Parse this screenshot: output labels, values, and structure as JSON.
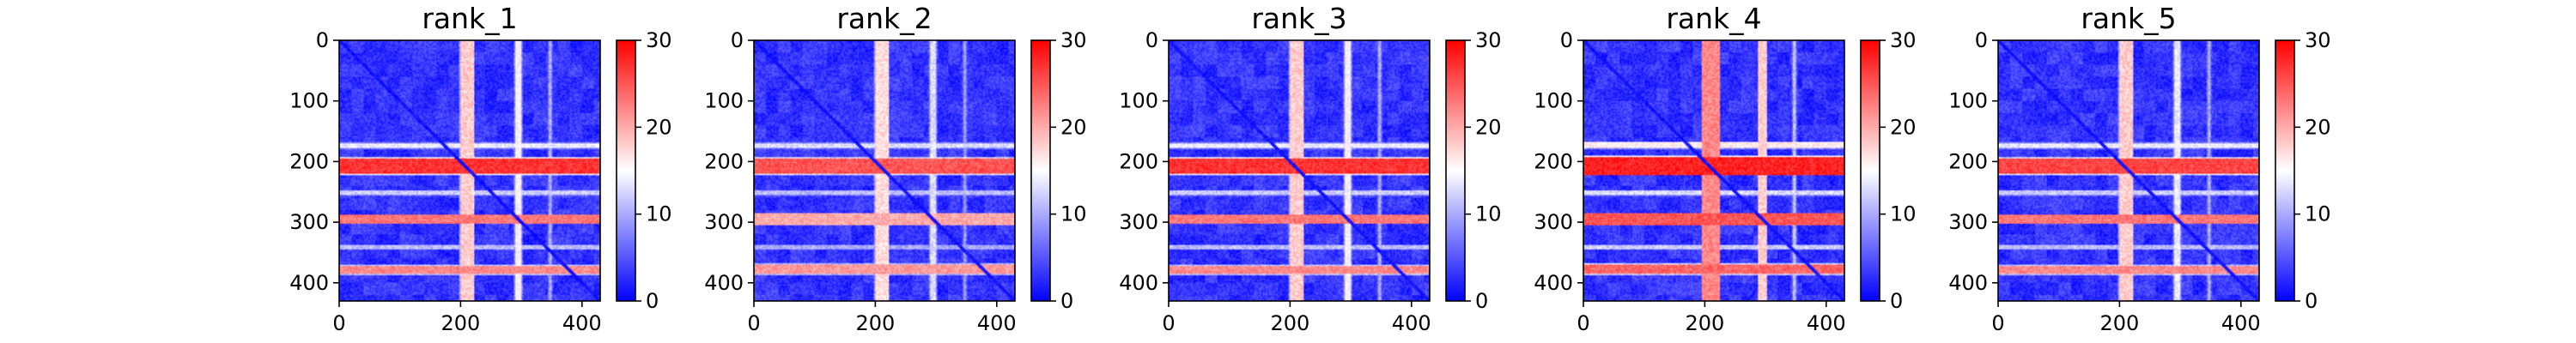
{
  "chart_data": [
    {
      "type": "heatmap",
      "title": "rank_1",
      "xlabel": "",
      "ylabel": "",
      "xlim": [
        0,
        430
      ],
      "ylim": [
        430,
        0
      ],
      "xticks": [
        0,
        200,
        400
      ],
      "yticks": [
        0,
        100,
        200,
        300,
        400
      ],
      "colorbar": {
        "range": [
          0,
          30
        ],
        "ticks": [
          0,
          10,
          20,
          30
        ],
        "colormap": "bwr"
      },
      "background_value": 3,
      "diagonal_value": 0,
      "row_bands": [
        {
          "start": 170,
          "end": 178,
          "value": 16
        },
        {
          "start": 195,
          "end": 220,
          "value": 29
        },
        {
          "start": 248,
          "end": 256,
          "value": 14
        },
        {
          "start": 288,
          "end": 302,
          "value": 25
        },
        {
          "start": 338,
          "end": 344,
          "value": 13
        },
        {
          "start": 372,
          "end": 386,
          "value": 24
        }
      ],
      "column_bands": [
        {
          "start": 200,
          "end": 222,
          "value": 20
        },
        {
          "start": 290,
          "end": 300,
          "value": 17
        },
        {
          "start": 345,
          "end": 350,
          "value": 12
        }
      ]
    },
    {
      "type": "heatmap",
      "title": "rank_2",
      "xlabel": "",
      "ylabel": "",
      "xlim": [
        0,
        430
      ],
      "ylim": [
        430,
        0
      ],
      "xticks": [
        0,
        200,
        400
      ],
      "yticks": [
        0,
        100,
        200,
        300,
        400
      ],
      "colorbar": {
        "range": [
          0,
          30
        ],
        "ticks": [
          0,
          10,
          20,
          30
        ],
        "colormap": "bwr"
      },
      "background_value": 3,
      "diagonal_value": 0,
      "row_bands": [
        {
          "start": 170,
          "end": 178,
          "value": 15
        },
        {
          "start": 195,
          "end": 220,
          "value": 27
        },
        {
          "start": 248,
          "end": 256,
          "value": 13
        },
        {
          "start": 286,
          "end": 304,
          "value": 22
        },
        {
          "start": 338,
          "end": 344,
          "value": 12
        },
        {
          "start": 370,
          "end": 386,
          "value": 23
        }
      ],
      "column_bands": [
        {
          "start": 200,
          "end": 222,
          "value": 19
        },
        {
          "start": 290,
          "end": 300,
          "value": 15
        },
        {
          "start": 345,
          "end": 350,
          "value": 11
        }
      ]
    },
    {
      "type": "heatmap",
      "title": "rank_3",
      "xlabel": "",
      "ylabel": "",
      "xlim": [
        0,
        430
      ],
      "ylim": [
        430,
        0
      ],
      "xticks": [
        0,
        200,
        400
      ],
      "yticks": [
        0,
        100,
        200,
        300,
        400
      ],
      "colorbar": {
        "range": [
          0,
          30
        ],
        "ticks": [
          0,
          10,
          20,
          30
        ],
        "colormap": "bwr"
      },
      "background_value": 3,
      "diagonal_value": 0,
      "row_bands": [
        {
          "start": 170,
          "end": 178,
          "value": 16
        },
        {
          "start": 195,
          "end": 220,
          "value": 29
        },
        {
          "start": 248,
          "end": 256,
          "value": 14
        },
        {
          "start": 288,
          "end": 302,
          "value": 25
        },
        {
          "start": 338,
          "end": 344,
          "value": 13
        },
        {
          "start": 372,
          "end": 386,
          "value": 24
        }
      ],
      "column_bands": [
        {
          "start": 200,
          "end": 222,
          "value": 20
        },
        {
          "start": 290,
          "end": 300,
          "value": 17
        },
        {
          "start": 345,
          "end": 350,
          "value": 12
        }
      ]
    },
    {
      "type": "heatmap",
      "title": "rank_4",
      "xlabel": "",
      "ylabel": "",
      "xlim": [
        0,
        430
      ],
      "ylim": [
        430,
        0
      ],
      "xticks": [
        0,
        200,
        400
      ],
      "yticks": [
        0,
        100,
        200,
        300,
        400
      ],
      "colorbar": {
        "range": [
          0,
          30
        ],
        "ticks": [
          0,
          10,
          20,
          30
        ],
        "colormap": "bwr"
      },
      "background_value": 3,
      "diagonal_value": 0,
      "row_bands": [
        {
          "start": 168,
          "end": 178,
          "value": 18
        },
        {
          "start": 192,
          "end": 222,
          "value": 30
        },
        {
          "start": 248,
          "end": 256,
          "value": 15
        },
        {
          "start": 286,
          "end": 304,
          "value": 27
        },
        {
          "start": 338,
          "end": 344,
          "value": 14
        },
        {
          "start": 370,
          "end": 386,
          "value": 26
        }
      ],
      "column_bands": [
        {
          "start": 196,
          "end": 224,
          "value": 24
        },
        {
          "start": 288,
          "end": 302,
          "value": 20
        },
        {
          "start": 345,
          "end": 350,
          "value": 13
        }
      ]
    },
    {
      "type": "heatmap",
      "title": "rank_5",
      "xlabel": "",
      "ylabel": "",
      "xlim": [
        0,
        430
      ],
      "ylim": [
        430,
        0
      ],
      "xticks": [
        0,
        200,
        400
      ],
      "yticks": [
        0,
        100,
        200,
        300,
        400
      ],
      "colorbar": {
        "range": [
          0,
          30
        ],
        "ticks": [
          0,
          10,
          20,
          30
        ],
        "colormap": "bwr"
      },
      "background_value": 3,
      "diagonal_value": 0,
      "row_bands": [
        {
          "start": 170,
          "end": 178,
          "value": 16
        },
        {
          "start": 195,
          "end": 220,
          "value": 28
        },
        {
          "start": 248,
          "end": 256,
          "value": 14
        },
        {
          "start": 288,
          "end": 302,
          "value": 25
        },
        {
          "start": 338,
          "end": 344,
          "value": 13
        },
        {
          "start": 372,
          "end": 386,
          "value": 24
        }
      ],
      "column_bands": [
        {
          "start": 200,
          "end": 222,
          "value": 20
        },
        {
          "start": 290,
          "end": 300,
          "value": 16
        },
        {
          "start": 345,
          "end": 350,
          "value": 12
        }
      ]
    }
  ]
}
